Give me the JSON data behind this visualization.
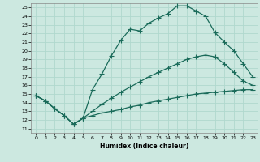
{
  "title": "",
  "xlabel": "Humidex (Indice chaleur)",
  "xlim": [
    -0.5,
    23.5
  ],
  "ylim": [
    10.5,
    25.5
  ],
  "xticks": [
    0,
    1,
    2,
    3,
    4,
    5,
    6,
    7,
    8,
    9,
    10,
    11,
    12,
    13,
    14,
    15,
    16,
    17,
    18,
    19,
    20,
    21,
    22,
    23
  ],
  "yticks": [
    11,
    12,
    13,
    14,
    15,
    16,
    17,
    18,
    19,
    20,
    21,
    22,
    23,
    24,
    25
  ],
  "bg_color": "#cce8e0",
  "grid_color": "#b0d8ce",
  "line_color": "#1a6b5a",
  "line_width": 0.9,
  "marker": "+",
  "marker_size": 4.0,
  "curves": [
    {
      "x": [
        0,
        1,
        2,
        3,
        4,
        5,
        6,
        7,
        8,
        9,
        10,
        11,
        12,
        13,
        14,
        15,
        16,
        17,
        18,
        19,
        20,
        21,
        22,
        23
      ],
      "y": [
        14.8,
        14.2,
        13.3,
        12.5,
        11.5,
        12.2,
        15.5,
        17.3,
        19.4,
        21.2,
        22.5,
        22.3,
        23.2,
        23.8,
        24.3,
        25.2,
        25.2,
        24.6,
        24.0,
        22.1,
        21.0,
        20.0,
        18.5,
        17.0
      ]
    },
    {
      "x": [
        0,
        1,
        2,
        3,
        4,
        5,
        6,
        7,
        8,
        9,
        10,
        11,
        12,
        13,
        14,
        15,
        16,
        17,
        18,
        19,
        20,
        21,
        22,
        23
      ],
      "y": [
        14.8,
        14.2,
        13.3,
        12.5,
        11.5,
        12.2,
        13.0,
        13.8,
        14.5,
        15.2,
        15.8,
        16.4,
        17.0,
        17.5,
        18.0,
        18.5,
        19.0,
        19.3,
        19.5,
        19.3,
        18.5,
        17.5,
        16.5,
        16.0
      ]
    },
    {
      "x": [
        0,
        1,
        2,
        3,
        4,
        5,
        6,
        7,
        8,
        9,
        10,
        11,
        12,
        13,
        14,
        15,
        16,
        17,
        18,
        19,
        20,
        21,
        22,
        23
      ],
      "y": [
        14.8,
        14.2,
        13.3,
        12.5,
        11.5,
        12.2,
        12.5,
        12.8,
        13.0,
        13.2,
        13.5,
        13.7,
        14.0,
        14.2,
        14.4,
        14.6,
        14.8,
        15.0,
        15.1,
        15.2,
        15.3,
        15.4,
        15.5,
        15.5
      ]
    }
  ]
}
